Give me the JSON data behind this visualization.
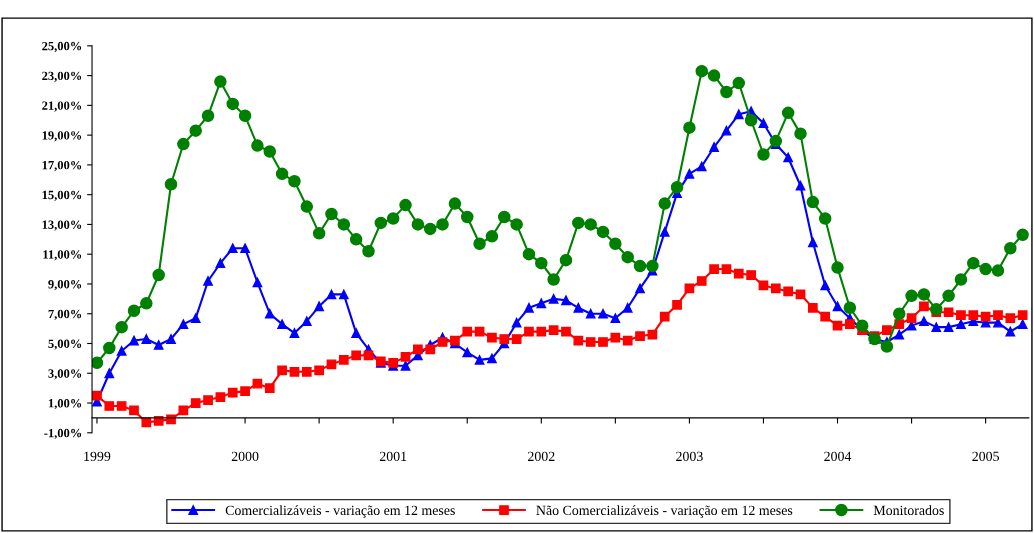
{
  "chart_data": {
    "type": "line",
    "categories": [
      "1999",
      null,
      null,
      null,
      null,
      null,
      null,
      null,
      null,
      null,
      null,
      null,
      "2000",
      null,
      null,
      null,
      null,
      null,
      null,
      null,
      null,
      null,
      null,
      null,
      "2001",
      null,
      null,
      null,
      null,
      null,
      null,
      null,
      null,
      null,
      null,
      null,
      "2002",
      null,
      null,
      null,
      null,
      null,
      null,
      null,
      null,
      null,
      null,
      null,
      "2003",
      null,
      null,
      null,
      null,
      null,
      null,
      null,
      null,
      null,
      null,
      null,
      "2004",
      null,
      null,
      null,
      null,
      null,
      null,
      null,
      null,
      null,
      null,
      null,
      "2005",
      null,
      null,
      null
    ],
    "series": [
      {
        "name": "Comercializáveis - variação em 12 meses",
        "color": "#0000ff",
        "marker": "triangle",
        "values": [
          1.1,
          3.0,
          4.5,
          5.2,
          5.3,
          4.9,
          5.3,
          6.3,
          6.7,
          9.2,
          10.4,
          11.4,
          11.4,
          9.1,
          7.0,
          6.3,
          5.7,
          6.5,
          7.5,
          8.3,
          8.3,
          5.7,
          4.6,
          3.7,
          3.5,
          3.5,
          4.2,
          4.9,
          5.4,
          5.0,
          4.4,
          3.9,
          4.0,
          5.0,
          6.4,
          7.4,
          7.7,
          8.0,
          7.9,
          7.4,
          7.0,
          7.0,
          6.7,
          7.4,
          8.7,
          9.9,
          12.5,
          15.1,
          16.4,
          16.9,
          18.2,
          19.3,
          20.4,
          20.6,
          19.8,
          18.4,
          17.5,
          15.6,
          11.8,
          8.9,
          7.5,
          6.7,
          5.9,
          5.3,
          5.1,
          5.6,
          6.2,
          6.5,
          6.1,
          6.1,
          6.3,
          6.5,
          6.4,
          6.4,
          5.8,
          6.3
        ]
      },
      {
        "name": "Não Comercializáveis - variação em 12 meses",
        "color": "#ff0000",
        "marker": "square",
        "values": [
          1.5,
          0.8,
          0.8,
          0.5,
          -0.3,
          -0.2,
          -0.1,
          0.5,
          1.0,
          1.2,
          1.4,
          1.7,
          1.8,
          2.3,
          2.0,
          3.2,
          3.1,
          3.1,
          3.2,
          3.6,
          3.9,
          4.2,
          4.2,
          3.8,
          3.7,
          4.1,
          4.6,
          4.6,
          5.1,
          5.2,
          5.8,
          5.8,
          5.4,
          5.3,
          5.3,
          5.8,
          5.8,
          5.9,
          5.8,
          5.2,
          5.1,
          5.1,
          5.4,
          5.2,
          5.5,
          5.6,
          6.8,
          7.6,
          8.7,
          9.2,
          10.0,
          10.0,
          9.7,
          9.6,
          8.9,
          8.7,
          8.5,
          8.3,
          7.4,
          6.8,
          6.2,
          6.3,
          5.9,
          5.5,
          5.9,
          6.3,
          6.7,
          7.5,
          7.1,
          7.1,
          6.9,
          6.9,
          6.8,
          6.9,
          6.7,
          6.9
        ]
      },
      {
        "name": "Monitorados",
        "color": "#008000",
        "marker": "circle",
        "values": [
          3.7,
          4.7,
          6.1,
          7.2,
          7.7,
          9.6,
          15.7,
          18.4,
          19.3,
          20.3,
          22.6,
          21.1,
          20.3,
          18.3,
          17.9,
          16.4,
          15.9,
          14.2,
          12.4,
          13.7,
          13.0,
          12.0,
          11.2,
          13.1,
          13.4,
          14.3,
          13.0,
          12.7,
          13.0,
          14.4,
          13.5,
          11.7,
          12.2,
          13.5,
          13.0,
          11.0,
          10.4,
          9.3,
          10.6,
          13.1,
          13.0,
          12.5,
          11.7,
          10.8,
          10.2,
          10.2,
          14.4,
          15.5,
          19.5,
          23.3,
          23.0,
          21.9,
          22.5,
          20.0,
          17.7,
          18.6,
          20.5,
          19.1,
          14.5,
          13.4,
          10.1,
          7.4,
          6.2,
          5.3,
          4.8,
          7.0,
          8.2,
          8.3,
          7.3,
          8.2,
          9.3,
          10.4,
          10.0,
          9.9,
          11.4,
          12.3
        ]
      }
    ],
    "ylim": [
      -1,
      25
    ],
    "yticks": [
      {
        "value": -1,
        "label": "-1,00%"
      },
      {
        "value": 1,
        "label": "1,00%"
      },
      {
        "value": 3,
        "label": "3,00%"
      },
      {
        "value": 5,
        "label": "5,00%"
      },
      {
        "value": 7,
        "label": "7,00%"
      },
      {
        "value": 9,
        "label": "9,00%"
      },
      {
        "value": 11,
        "label": "11,00%"
      },
      {
        "value": 13,
        "label": "13,00%"
      },
      {
        "value": 15,
        "label": "15,00%"
      },
      {
        "value": 17,
        "label": "17,00%"
      },
      {
        "value": 19,
        "label": "19,00%"
      },
      {
        "value": 21,
        "label": "21,00%"
      },
      {
        "value": 23,
        "label": "23,00%"
      },
      {
        "value": 25,
        "label": "25,00%"
      }
    ],
    "grid": false,
    "legend": "bottom",
    "line_style": "solid"
  }
}
